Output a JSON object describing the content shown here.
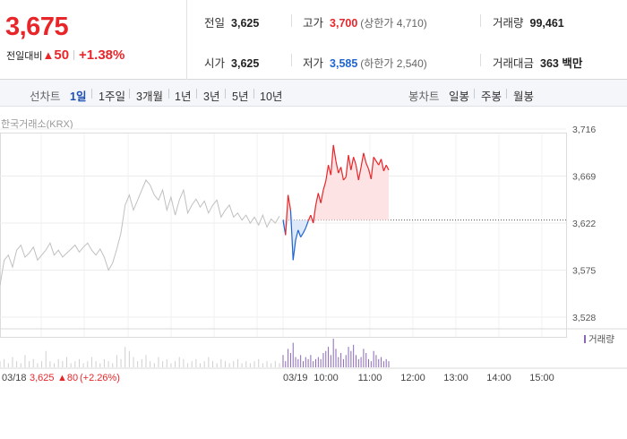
{
  "summary": {
    "current_price": "3,675",
    "change_label": "전일대비",
    "change_arrow": "▲",
    "change_amount": "50",
    "change_percent": "+1.38%",
    "prev_close_label": "전일",
    "prev_close": "3,625",
    "open_label": "시가",
    "open": "3,625",
    "high_label": "고가",
    "high": "3,700",
    "upper_limit": "(상한가 4,710)",
    "low_label": "저가",
    "low": "3,585",
    "lower_limit": "(하한가 2,540)",
    "volume_label": "거래량",
    "volume": "99,461",
    "trade_value_label": "거래대금",
    "trade_value": "363 백만"
  },
  "toolbar": {
    "line_title": "선차트",
    "periods": [
      "1일",
      "1주일",
      "3개월",
      "1년",
      "3년",
      "5년",
      "10년"
    ],
    "active_period": "1일",
    "candle_title": "봉차트",
    "candles": [
      "일봉",
      "주봉",
      "월봉"
    ]
  },
  "chart_source": "한국거래소(KRX)",
  "colors": {
    "up": "#e8262a",
    "down": "#1e64d2",
    "prev_day": "#c0c0c0",
    "accent": "#1e50b4"
  },
  "chart_data": {
    "type": "line",
    "y_ticks": [
      "3,716",
      "3,669",
      "3,622",
      "3,575",
      "3,528"
    ],
    "y_tick_values": [
      3716,
      3669,
      3622,
      3575,
      3528
    ],
    "ylim": [
      3528,
      3716
    ],
    "x_tick_labels": [
      "10:00",
      "11:00",
      "12:00",
      "13:00",
      "14:00",
      "15:00"
    ],
    "prev_day_date": "03/18",
    "today_date": "03/19",
    "prev_close_value": 3625,
    "prev_day_series_name": "03/18",
    "prev_day_values": [
      3560,
      3585,
      3590,
      3578,
      3595,
      3600,
      3588,
      3592,
      3598,
      3585,
      3590,
      3595,
      3602,
      3590,
      3595,
      3588,
      3592,
      3596,
      3600,
      3593,
      3598,
      3602,
      3595,
      3590,
      3596,
      3588,
      3575,
      3582,
      3596,
      3612,
      3640,
      3650,
      3635,
      3645,
      3655,
      3665,
      3660,
      3650,
      3645,
      3655,
      3635,
      3648,
      3630,
      3645,
      3655,
      3632,
      3640,
      3646,
      3638,
      3644,
      3632,
      3640,
      3645,
      3628,
      3635,
      3640,
      3628,
      3632,
      3625,
      3630,
      3622,
      3628,
      3620,
      3630,
      3618,
      3626,
      3622,
      3629
    ],
    "today_series_name": "03/19",
    "today_values": [
      3625,
      3610,
      3650,
      3635,
      3585,
      3605,
      3615,
      3608,
      3612,
      3617,
      3624,
      3630,
      3622,
      3640,
      3652,
      3642,
      3655,
      3664,
      3680,
      3670,
      3700,
      3684,
      3672,
      3678,
      3665,
      3668,
      3690,
      3675,
      3688,
      3680,
      3665,
      3678,
      3692,
      3682,
      3676,
      3666,
      3688,
      3684,
      3680,
      3686,
      3674,
      3680,
      3675
    ],
    "volume_label": "거래량",
    "volume_prev_day": [
      3,
      4,
      2,
      5,
      3,
      2,
      6,
      3,
      4,
      2,
      3,
      8,
      3,
      2,
      4,
      3,
      5,
      2,
      3,
      4,
      2,
      3,
      5,
      3,
      2,
      4,
      3,
      2,
      6,
      4,
      10,
      8,
      5,
      3,
      4,
      6,
      3,
      2,
      5,
      3,
      4,
      2,
      3,
      5,
      4,
      2,
      3,
      4,
      2,
      3,
      5,
      3,
      2,
      4,
      3,
      2,
      3,
      4,
      2,
      3,
      2,
      3,
      4,
      2,
      3,
      2,
      3,
      2
    ],
    "volume_today": [
      6,
      3,
      9,
      7,
      12,
      5,
      4,
      6,
      3,
      5,
      4,
      6,
      3,
      4,
      5,
      4,
      7,
      8,
      10,
      6,
      14,
      9,
      5,
      7,
      4,
      6,
      10,
      8,
      11,
      6,
      4,
      5,
      9,
      7,
      4,
      3,
      8,
      6,
      4,
      5,
      3,
      4,
      3
    ],
    "footer_prev_date": "03/18",
    "footer_prev_close": "3,625",
    "footer_change": "▲80",
    "footer_change_pct": "(+2.26%)"
  }
}
